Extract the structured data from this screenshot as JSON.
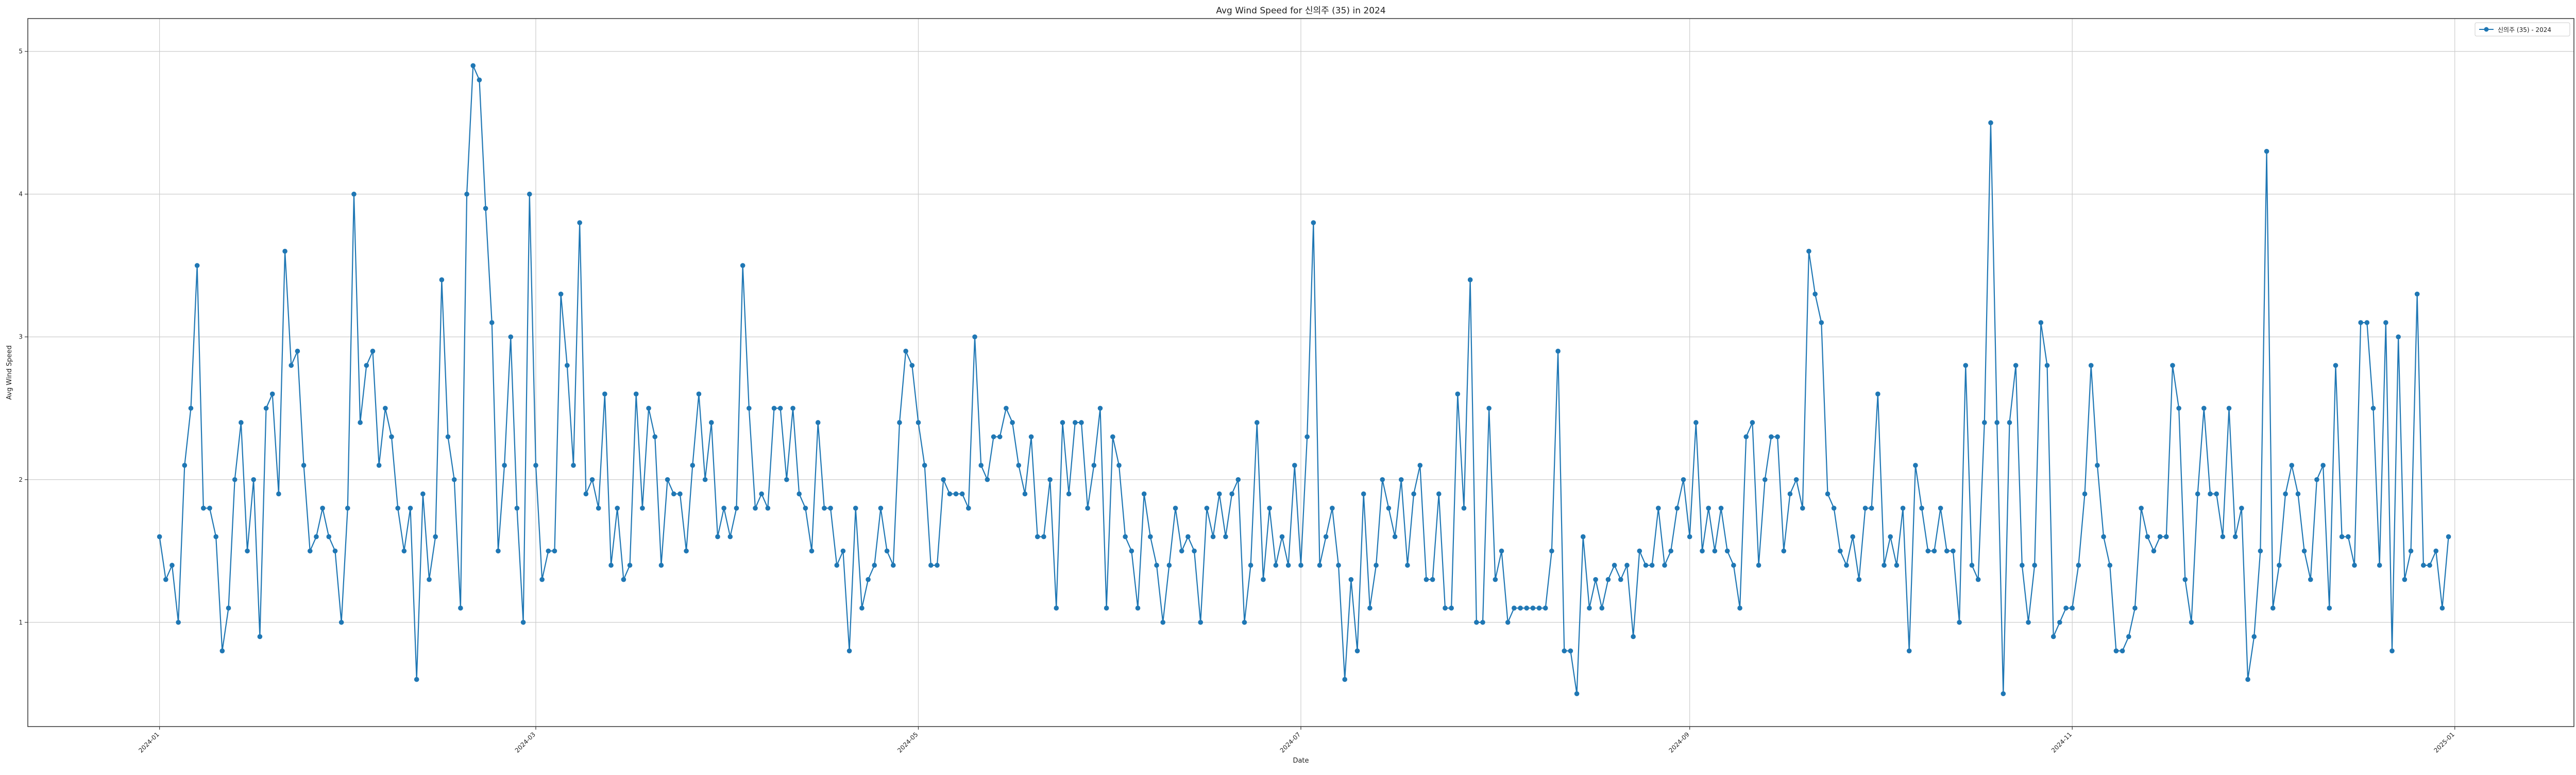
{
  "chart_data": {
    "type": "line",
    "title": "Avg Wind Speed for 신의주 (35) in 2024",
    "xlabel": "Date",
    "ylabel": "Avg Wind Speed",
    "x_start": "2024-01-01",
    "x_step_days": 1,
    "xlim": [
      "2023-12-11",
      "2025-01-20"
    ],
    "ylim": [
      0.27,
      5.23
    ],
    "x_ticks": [
      {
        "date": "2024-01-01",
        "label": "2024-01"
      },
      {
        "date": "2024-03-01",
        "label": "2024-03"
      },
      {
        "date": "2024-05-01",
        "label": "2024-05"
      },
      {
        "date": "2024-07-01",
        "label": "2024-07"
      },
      {
        "date": "2024-09-01",
        "label": "2024-09"
      },
      {
        "date": "2024-11-01",
        "label": "2024-11"
      },
      {
        "date": "2025-01-01",
        "label": "2025-01"
      }
    ],
    "y_ticks": [
      1,
      2,
      3,
      4,
      5
    ],
    "grid": true,
    "legend_position": "top-right",
    "series": [
      {
        "name": "신의주 (35) - 2024",
        "color": "#1f77b4",
        "marker": "circle",
        "values": [
          1.6,
          1.3,
          1.4,
          1.0,
          2.1,
          2.5,
          3.5,
          1.8,
          1.8,
          1.6,
          0.8,
          1.1,
          2.0,
          2.4,
          1.5,
          2.0,
          0.9,
          2.5,
          2.6,
          1.9,
          3.6,
          2.8,
          2.9,
          2.1,
          1.5,
          1.6,
          1.8,
          1.6,
          1.5,
          1.0,
          1.8,
          4.0,
          2.4,
          2.8,
          2.9,
          2.1,
          2.5,
          2.3,
          1.8,
          1.5,
          1.8,
          0.6,
          1.9,
          1.3,
          1.6,
          3.4,
          2.3,
          2.0,
          1.1,
          4.0,
          4.9,
          4.8,
          3.9,
          3.1,
          1.5,
          2.1,
          3.0,
          1.8,
          1.0,
          4.0,
          2.1,
          1.3,
          1.5,
          1.5,
          3.3,
          2.8,
          2.1,
          3.8,
          1.9,
          2.0,
          1.8,
          2.6,
          1.4,
          1.8,
          1.3,
          1.4,
          2.6,
          1.8,
          2.5,
          2.3,
          1.4,
          2.0,
          1.9,
          1.9,
          1.5,
          2.1,
          2.6,
          2.0,
          2.4,
          1.6,
          1.8,
          1.6,
          1.8,
          3.5,
          2.5,
          1.8,
          1.9,
          1.8,
          2.5,
          2.5,
          2.0,
          2.5,
          1.9,
          1.8,
          1.5,
          2.4,
          1.8,
          1.8,
          1.4,
          1.5,
          0.8,
          1.8,
          1.1,
          1.3,
          1.4,
          1.8,
          1.5,
          1.4,
          2.4,
          2.9,
          2.8,
          2.4,
          2.1,
          1.4,
          1.4,
          2.0,
          1.9,
          1.9,
          1.9,
          1.8,
          3.0,
          2.1,
          2.0,
          2.3,
          2.3,
          2.5,
          2.4,
          2.1,
          1.9,
          2.3,
          1.6,
          1.6,
          2.0,
          1.1,
          2.4,
          1.9,
          2.4,
          2.4,
          1.8,
          2.1,
          2.5,
          1.1,
          2.3,
          2.1,
          1.6,
          1.5,
          1.1,
          1.9,
          1.6,
          1.4,
          1.0,
          1.4,
          1.8,
          1.5,
          1.6,
          1.5,
          1.0,
          1.8,
          1.6,
          1.9,
          1.6,
          1.9,
          2.0,
          1.0,
          1.4,
          2.4,
          1.3,
          1.8,
          1.4,
          1.6,
          1.4,
          2.1,
          1.4,
          2.3,
          3.8,
          1.4,
          1.6,
          1.8,
          1.4,
          0.6,
          1.3,
          0.8,
          1.9,
          1.1,
          1.4,
          2.0,
          1.8,
          1.6,
          2.0,
          1.4,
          1.9,
          2.1,
          1.3,
          1.3,
          1.9,
          1.1,
          1.1,
          2.6,
          1.8,
          3.4,
          1.0,
          1.0,
          2.5,
          1.3,
          1.5,
          1.0,
          1.1,
          1.1,
          1.1,
          1.1,
          1.1,
          1.1,
          1.5,
          2.9,
          0.8,
          0.8,
          0.5,
          1.6,
          1.1,
          1.3,
          1.1,
          1.3,
          1.4,
          1.3,
          1.4,
          0.9,
          1.5,
          1.4,
          1.4,
          1.8,
          1.4,
          1.5,
          1.8,
          2.0,
          1.6,
          2.4,
          1.5,
          1.8,
          1.5,
          1.8,
          1.5,
          1.4,
          1.1,
          2.3,
          2.4,
          1.4,
          2.0,
          2.3,
          2.3,
          1.5,
          1.9,
          2.0,
          1.8,
          3.6,
          3.3,
          3.1,
          1.9,
          1.8,
          1.5,
          1.4,
          1.6,
          1.3,
          1.8,
          1.8,
          2.6,
          1.4,
          1.6,
          1.4,
          1.8,
          0.8,
          2.1,
          1.8,
          1.5,
          1.5,
          1.8,
          1.5,
          1.5,
          1.0,
          2.8,
          1.4,
          1.3,
          2.4,
          4.5,
          2.4,
          0.5,
          2.4,
          2.8,
          1.4,
          1.0,
          1.4,
          3.1,
          2.8,
          0.9,
          1.0,
          1.1,
          1.1,
          1.4,
          1.9,
          2.8,
          2.1,
          1.6,
          1.4,
          0.8,
          0.8,
          0.9,
          1.1,
          1.8,
          1.6,
          1.5,
          1.6,
          1.6,
          2.8,
          2.5,
          1.3,
          1.0,
          1.9,
          2.5,
          1.9,
          1.9,
          1.6,
          2.5,
          1.6,
          1.8,
          0.6,
          0.9,
          1.5,
          4.3,
          1.1,
          1.4,
          1.9,
          2.1,
          1.9,
          1.5,
          1.3,
          2.0,
          2.1,
          1.1,
          2.8,
          1.6,
          1.6,
          1.4,
          3.1,
          3.1,
          2.5,
          1.4,
          3.1,
          0.8,
          3.0,
          1.3,
          1.5,
          3.3,
          1.4,
          1.4,
          1.5,
          1.1,
          1.6
        ]
      }
    ]
  }
}
